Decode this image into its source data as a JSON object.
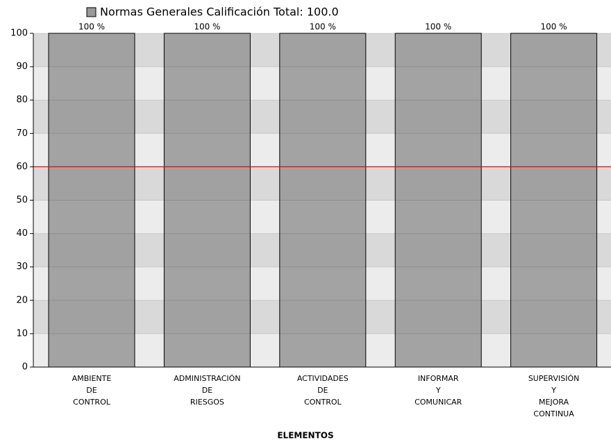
{
  "chart_data": {
    "type": "bar",
    "x_label": "ELEMENTOS",
    "categories": [
      [
        "AMBIENTE",
        "DE",
        "CONTROL"
      ],
      [
        "ADMINISTRACIÓN",
        "DE",
        "RIESGOS"
      ],
      [
        "ACTIVIDADES",
        "DE",
        "CONTROL"
      ],
      [
        "INFORMAR",
        "Y",
        "COMUNICAR"
      ],
      [
        "SUPERVISIÓN",
        "Y",
        "MEJORA",
        "CONTINUA"
      ]
    ],
    "series": [
      {
        "name": "Normas Generales Calificación Total: 100.0",
        "color": "#999999",
        "values": [
          100,
          100,
          100,
          100,
          100
        ],
        "value_labels": [
          "100 %",
          "100 %",
          "100 %",
          "100 %",
          "100 %"
        ]
      }
    ],
    "ylim": [
      0,
      100
    ],
    "yticks": [
      0,
      10,
      20,
      30,
      40,
      50,
      60,
      70,
      80,
      90,
      100
    ],
    "grid": true,
    "threshold": 60,
    "threshold_color": "#ff0000",
    "legend": "top"
  }
}
